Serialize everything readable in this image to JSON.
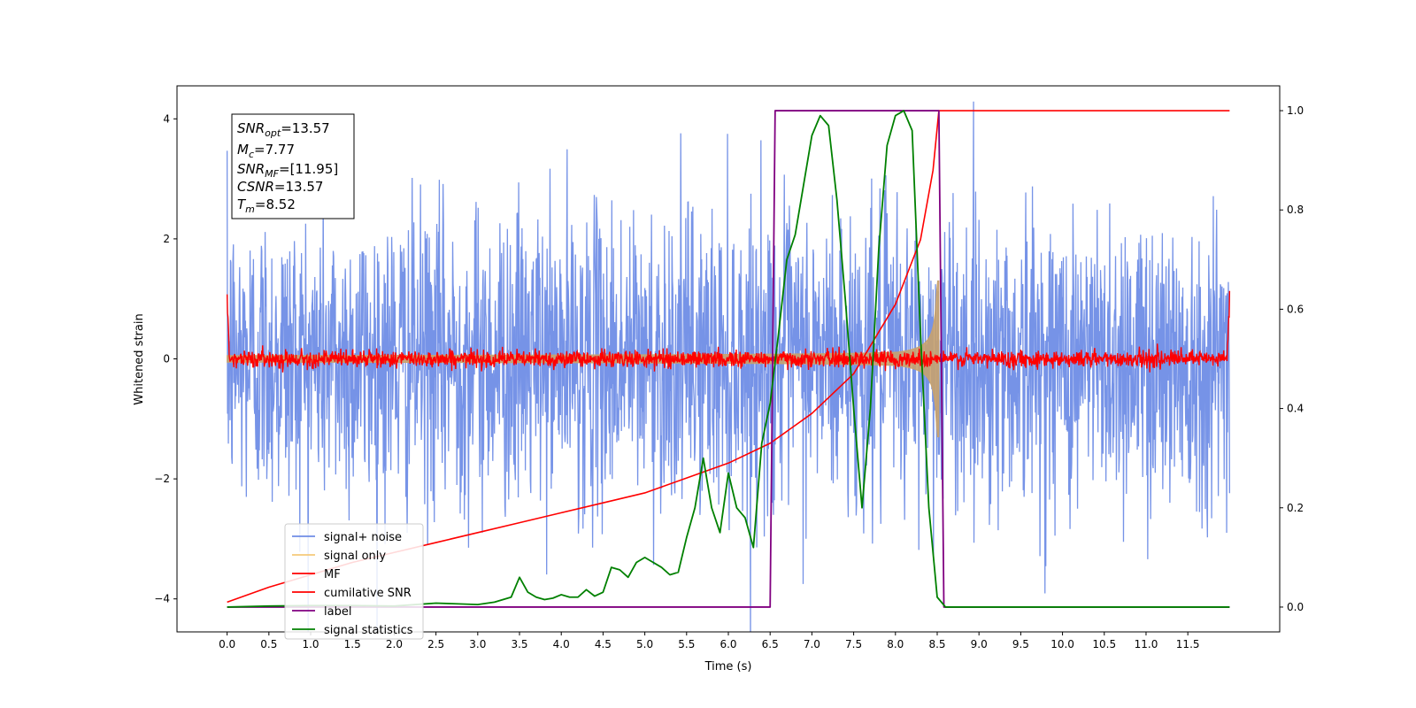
{
  "chart_data": {
    "type": "line",
    "xlabel": "Time (s)",
    "ylabel": "Whitened strain",
    "xlim": [
      -0.6,
      12.6
    ],
    "ylim": [
      -4.55,
      4.55
    ],
    "y2lim": [
      -0.05,
      1.05
    ],
    "x_ticks": [
      "0.0",
      "0.5",
      "1.0",
      "1.5",
      "2.0",
      "2.5",
      "3.0",
      "3.5",
      "4.0",
      "4.5",
      "5.0",
      "5.5",
      "6.0",
      "6.5",
      "7.0",
      "7.5",
      "8.0",
      "8.5",
      "9.0",
      "9.5",
      "10.0",
      "10.5",
      "11.0",
      "11.5"
    ],
    "y_ticks": [
      "−4",
      "−2",
      "0",
      "2",
      "4"
    ],
    "y2_ticks": [
      "0.0",
      "0.2",
      "0.4",
      "0.6",
      "0.8",
      "1.0"
    ],
    "annotation": {
      "snr_opt_label": "SNR",
      "snr_opt_sub": "opt",
      "snr_opt_value": "=13.57",
      "mc_label": "M",
      "mc_sub": "c",
      "mc_value": "=7.77",
      "snr_mf_label": "SNR",
      "snr_mf_sub": "MF",
      "snr_mf_value": "=[11.95]",
      "csnr_label": "CSNR",
      "csnr_value": "=13.57",
      "tm_label": "T",
      "tm_sub": "m",
      "tm_value": "=8.52"
    },
    "legend": {
      "placement": "lower-left",
      "entries": [
        {
          "label": "signal+ noise",
          "color": "#6f8de6"
        },
        {
          "label": "signal only",
          "color": "#f5c97a"
        },
        {
          "label": "MF",
          "color": "#ff0000"
        },
        {
          "label": "cumilative SNR",
          "color": "#ff0000"
        },
        {
          "label": "label",
          "color": "#800080"
        },
        {
          "label": "signal statistics",
          "color": "#008000"
        }
      ]
    },
    "series": [
      {
        "name": "signal+ noise",
        "axis": "left",
        "color": "#6f8de6",
        "noise_std": 1.25,
        "x_range": [
          0.0,
          12.0
        ]
      },
      {
        "name": "signal only",
        "axis": "left",
        "color": "#c8a26e",
        "chirp_amplitude_end": 1.3,
        "merger_time": 8.52
      },
      {
        "name": "MF",
        "axis": "left",
        "color": "#ff0000",
        "noise_std": 0.07
      },
      {
        "name": "cumilative SNR",
        "axis": "right",
        "color": "#ff0000",
        "x": [
          0.0,
          0.5,
          1.0,
          1.5,
          2.0,
          2.5,
          3.0,
          3.5,
          4.0,
          4.5,
          5.0,
          5.5,
          6.0,
          6.5,
          7.0,
          7.5,
          8.0,
          8.3,
          8.45,
          8.52,
          9.0,
          12.0
        ],
        "y": [
          0.01,
          0.04,
          0.065,
          0.09,
          0.11,
          0.13,
          0.15,
          0.17,
          0.19,
          0.21,
          0.23,
          0.26,
          0.29,
          0.33,
          0.39,
          0.47,
          0.61,
          0.74,
          0.88,
          1.0,
          1.0,
          1.0
        ]
      },
      {
        "name": "label",
        "axis": "right",
        "color": "#800080",
        "x": [
          0.0,
          6.5,
          6.56,
          8.52,
          8.58,
          12.0
        ],
        "y": [
          0.0,
          0.0,
          1.0,
          1.0,
          0.0,
          0.0
        ]
      },
      {
        "name": "signal statistics",
        "axis": "right",
        "color": "#008000",
        "x": [
          0.0,
          0.5,
          1.0,
          1.5,
          2.0,
          2.5,
          3.0,
          3.2,
          3.4,
          3.5,
          3.6,
          3.7,
          3.8,
          3.9,
          4.0,
          4.1,
          4.2,
          4.3,
          4.4,
          4.5,
          4.6,
          4.7,
          4.8,
          4.9,
          5.0,
          5.1,
          5.2,
          5.3,
          5.4,
          5.5,
          5.6,
          5.7,
          5.8,
          5.9,
          6.0,
          6.1,
          6.2,
          6.3,
          6.4,
          6.5,
          6.6,
          6.7,
          6.8,
          6.9,
          7.0,
          7.1,
          7.2,
          7.3,
          7.4,
          7.5,
          7.6,
          7.7,
          7.8,
          7.9,
          8.0,
          8.1,
          8.2,
          8.3,
          8.4,
          8.5,
          8.6,
          9.0,
          10.0,
          11.0,
          12.0
        ],
        "y": [
          0.0,
          0.002,
          0.003,
          0.003,
          0.002,
          0.008,
          0.005,
          0.01,
          0.02,
          0.06,
          0.03,
          0.02,
          0.015,
          0.018,
          0.025,
          0.02,
          0.02,
          0.035,
          0.022,
          0.03,
          0.08,
          0.075,
          0.06,
          0.09,
          0.1,
          0.09,
          0.08,
          0.065,
          0.07,
          0.14,
          0.2,
          0.3,
          0.2,
          0.15,
          0.27,
          0.2,
          0.18,
          0.12,
          0.33,
          0.41,
          0.55,
          0.7,
          0.75,
          0.85,
          0.95,
          0.99,
          0.97,
          0.82,
          0.62,
          0.4,
          0.2,
          0.4,
          0.72,
          0.93,
          0.99,
          1.0,
          0.96,
          0.55,
          0.2,
          0.02,
          0.0,
          0.0,
          0.0,
          0.0,
          0.0
        ]
      }
    ]
  }
}
